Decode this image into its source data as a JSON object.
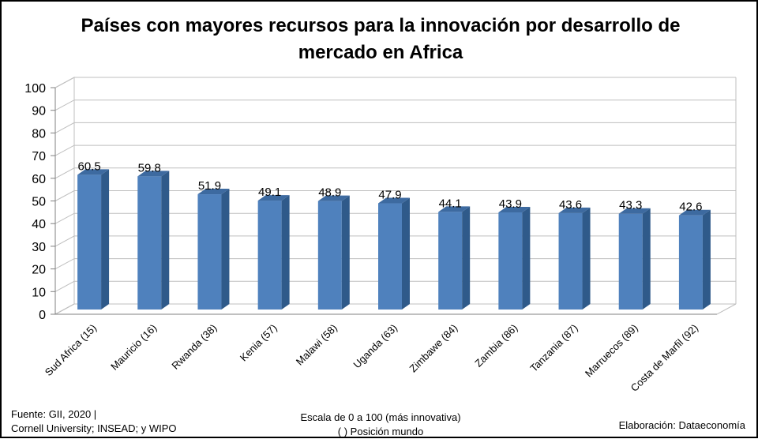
{
  "chart_data": {
    "type": "bar",
    "title_line1": "Países con mayores recursos para la innovación por desarrollo de",
    "title_line2": "mercado en Africa",
    "categories": [
      "Sud Africa (15)",
      "Mauricio (16)",
      "Rwanda (38)",
      "Kenia (57)",
      "Malawi (58)",
      "Uganda (63)",
      "Zimbawe (84)",
      "Zambia (86)",
      "Tanzania (87)",
      "Marruecos (89)",
      "Costa de Marfil (92)"
    ],
    "values": [
      60.5,
      59.8,
      51.9,
      49.1,
      48.9,
      47.9,
      44.1,
      43.9,
      43.6,
      43.3,
      42.6
    ],
    "value_labels": [
      "60.5",
      "59.8",
      "51.9",
      "49.1",
      "48.9",
      "47.9",
      "44.1",
      "43.9",
      "43.6",
      "43.3",
      "42.6"
    ],
    "ylim": [
      0,
      100
    ],
    "yticks": [
      "0",
      "10",
      "20",
      "30",
      "40",
      "50",
      "60",
      "70",
      "80",
      "90",
      "100"
    ],
    "grid": true,
    "bar_color": "#4f81bd",
    "bar_side_color": "#2f5a8a",
    "bar_top_color": "#3d6aa0"
  },
  "footer": {
    "source_line1": "Fuente:  GII, 2020 |",
    "source_line2": "Cornell University; INSEAD; y WIPO",
    "scale_line1": "Escala de 0 a 100 (más innovativa)",
    "scale_line2": "( ) Posición mundo",
    "credit": "Elaboración: Dataeconomía"
  }
}
